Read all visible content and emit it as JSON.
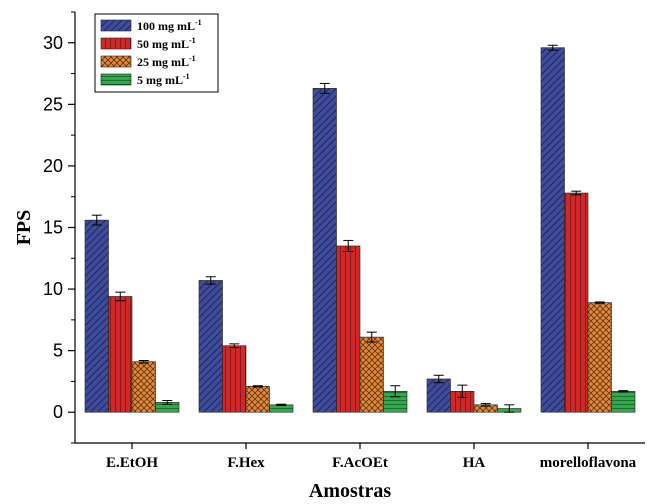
{
  "chart_data": {
    "type": "bar",
    "xlabel": "Amostras",
    "ylabel": "FPS",
    "ylim": [
      -2.5,
      32.5
    ],
    "yticks": [
      0,
      5,
      10,
      15,
      20,
      25,
      30
    ],
    "categories": [
      "E.EtOH",
      "F.Hex",
      "F.AcOEt",
      "HA",
      "morelloflavona"
    ],
    "legend_position": "top-left",
    "series": [
      {
        "name": "100 mg mL",
        "sup": "-1",
        "color": "#3f4c9c",
        "pattern": "diagonal",
        "values": [
          15.6,
          10.7,
          26.3,
          2.7,
          29.6
        ],
        "errors": [
          0.4,
          0.3,
          0.4,
          0.3,
          0.2
        ]
      },
      {
        "name": "50 mg mL",
        "sup": "-1",
        "color": "#d02828",
        "pattern": "vertical",
        "values": [
          9.4,
          5.4,
          13.5,
          1.7,
          17.8
        ],
        "errors": [
          0.35,
          0.15,
          0.45,
          0.5,
          0.15
        ]
      },
      {
        "name": "25 mg mL",
        "sup": "-1",
        "color": "#e08a3c",
        "pattern": "crosshatch",
        "values": [
          4.1,
          2.1,
          6.1,
          0.6,
          8.9
        ],
        "errors": [
          0.1,
          0.05,
          0.4,
          0.1,
          0.05
        ]
      },
      {
        "name": "5 mg mL",
        "sup": "-1",
        "color": "#2faa4a",
        "pattern": "horizontal",
        "values": [
          0.8,
          0.6,
          1.7,
          0.3,
          1.7
        ],
        "errors": [
          0.15,
          0.05,
          0.45,
          0.3,
          0.05
        ]
      }
    ]
  }
}
